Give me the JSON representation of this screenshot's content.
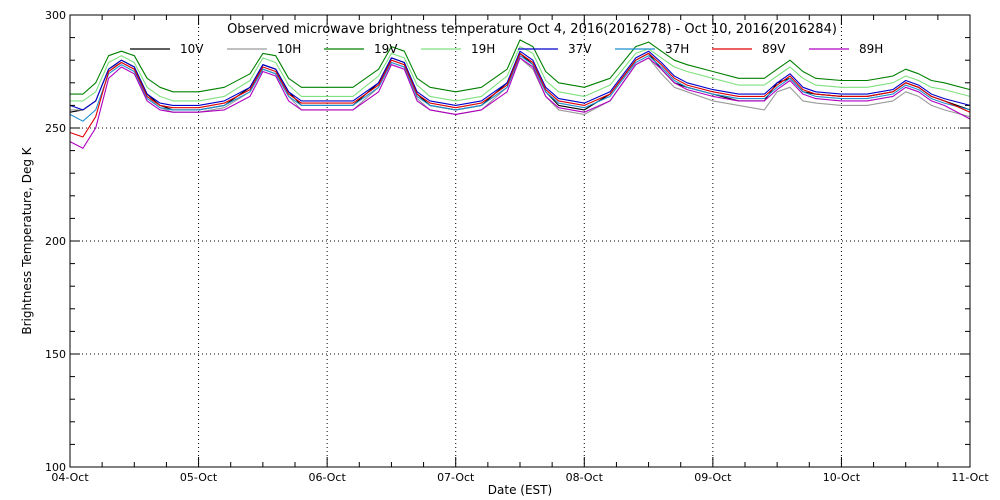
{
  "chart_data": {
    "type": "line",
    "title": "Observed microwave brightness temperature Oct  4, 2016(2016278) - Oct 10, 2016(2016284)",
    "xlabel": "Date (EST)",
    "ylabel": "Brightness Temperature, Deg K",
    "ylim": [
      100,
      300
    ],
    "xlim": [
      0,
      7
    ],
    "y_ticks": [
      100,
      150,
      200,
      250,
      300
    ],
    "x_ticks": [
      0,
      1,
      2,
      3,
      4,
      5,
      6,
      7
    ],
    "x_tick_labels": [
      "04-Oct",
      "05-Oct",
      "06-Oct",
      "07-Oct",
      "08-Oct",
      "09-Oct",
      "10-Oct",
      "11-Oct"
    ],
    "grid": true,
    "grid_style": "dotted",
    "legend_position": "top",
    "x_days": [
      0.0,
      0.1,
      0.2,
      0.3,
      0.4,
      0.5,
      0.6,
      0.7,
      0.8,
      1.0,
      1.2,
      1.4,
      1.5,
      1.6,
      1.7,
      1.8,
      2.0,
      2.2,
      2.4,
      2.5,
      2.6,
      2.7,
      2.8,
      3.0,
      3.2,
      3.4,
      3.5,
      3.6,
      3.7,
      3.8,
      4.0,
      4.2,
      4.4,
      4.5,
      4.6,
      4.7,
      4.8,
      5.0,
      5.2,
      5.4,
      5.5,
      5.6,
      5.7,
      5.8,
      6.0,
      6.2,
      6.4,
      6.5,
      6.6,
      6.7,
      6.8,
      7.0
    ],
    "series": [
      {
        "name": "10V",
        "color": "#000000",
        "values": [
          257,
          258,
          262,
          276,
          280,
          277,
          265,
          260,
          258,
          258,
          260,
          268,
          278,
          276,
          266,
          260,
          260,
          260,
          270,
          281,
          279,
          265,
          260,
          258,
          260,
          270,
          283,
          278,
          266,
          260,
          258,
          265,
          280,
          283,
          276,
          270,
          268,
          265,
          262,
          262,
          270,
          272,
          266,
          265,
          264,
          264,
          266,
          270,
          268,
          264,
          262,
          258
        ]
      },
      {
        "name": "10H",
        "color": "#9a9a9a",
        "values": [
          258,
          258,
          262,
          276,
          279,
          276,
          264,
          259,
          257,
          257,
          259,
          266,
          276,
          274,
          264,
          258,
          258,
          258,
          268,
          279,
          277,
          263,
          258,
          256,
          258,
          268,
          281,
          276,
          264,
          258,
          256,
          262,
          278,
          281,
          274,
          268,
          266,
          262,
          260,
          258,
          266,
          268,
          262,
          261,
          260,
          260,
          262,
          266,
          264,
          260,
          258,
          255
        ]
      },
      {
        "name": "19V",
        "color": "#008000",
        "values": [
          265,
          265,
          270,
          282,
          284,
          282,
          272,
          268,
          266,
          266,
          268,
          274,
          283,
          282,
          272,
          268,
          268,
          268,
          276,
          286,
          284,
          272,
          268,
          266,
          268,
          276,
          289,
          286,
          275,
          270,
          268,
          272,
          286,
          288,
          284,
          280,
          278,
          275,
          272,
          272,
          276,
          280,
          275,
          272,
          271,
          271,
          273,
          276,
          274,
          271,
          270,
          267
        ]
      },
      {
        "name": "19H",
        "color": "#7fe07f",
        "values": [
          262,
          262,
          266,
          279,
          282,
          279,
          268,
          264,
          262,
          262,
          264,
          271,
          281,
          279,
          269,
          264,
          264,
          264,
          273,
          283,
          281,
          269,
          264,
          262,
          264,
          273,
          286,
          283,
          271,
          266,
          264,
          269,
          283,
          285,
          281,
          277,
          275,
          272,
          269,
          269,
          273,
          277,
          272,
          269,
          268,
          268,
          270,
          273,
          271,
          268,
          267,
          264
        ]
      },
      {
        "name": "37V",
        "color": "#0000cc",
        "values": [
          260,
          258,
          262,
          276,
          280,
          277,
          265,
          261,
          260,
          260,
          262,
          268,
          278,
          276,
          266,
          262,
          262,
          262,
          270,
          281,
          279,
          266,
          262,
          260,
          262,
          270,
          284,
          280,
          268,
          263,
          261,
          266,
          281,
          284,
          279,
          273,
          270,
          267,
          265,
          265,
          270,
          274,
          268,
          266,
          265,
          265,
          267,
          271,
          269,
          265,
          263,
          260
        ]
      },
      {
        "name": "37H",
        "color": "#1e8fd0",
        "values": [
          256,
          253,
          258,
          274,
          278,
          275,
          263,
          259,
          258,
          258,
          260,
          266,
          276,
          274,
          264,
          260,
          260,
          260,
          268,
          279,
          277,
          264,
          260,
          258,
          260,
          268,
          282,
          278,
          266,
          261,
          259,
          264,
          279,
          282,
          277,
          271,
          268,
          265,
          263,
          263,
          268,
          272,
          266,
          264,
          263,
          263,
          265,
          269,
          267,
          263,
          261,
          258
        ]
      },
      {
        "name": "89V",
        "color": "#e00000",
        "values": [
          248,
          246,
          255,
          275,
          279,
          276,
          264,
          260,
          259,
          259,
          261,
          267,
          277,
          275,
          265,
          261,
          261,
          261,
          269,
          280,
          278,
          265,
          261,
          259,
          261,
          269,
          283,
          279,
          267,
          262,
          260,
          265,
          280,
          283,
          278,
          272,
          269,
          266,
          264,
          264,
          269,
          273,
          267,
          265,
          264,
          264,
          266,
          270,
          268,
          264,
          262,
          257
        ]
      },
      {
        "name": "89H",
        "color": "#b000c0",
        "values": [
          244,
          241,
          250,
          272,
          277,
          274,
          262,
          258,
          257,
          257,
          258,
          264,
          275,
          273,
          262,
          258,
          258,
          258,
          266,
          278,
          276,
          262,
          258,
          256,
          258,
          266,
          281,
          277,
          264,
          259,
          257,
          262,
          278,
          281,
          276,
          270,
          267,
          264,
          262,
          262,
          267,
          271,
          265,
          263,
          262,
          262,
          264,
          268,
          266,
          262,
          260,
          254
        ]
      }
    ]
  }
}
